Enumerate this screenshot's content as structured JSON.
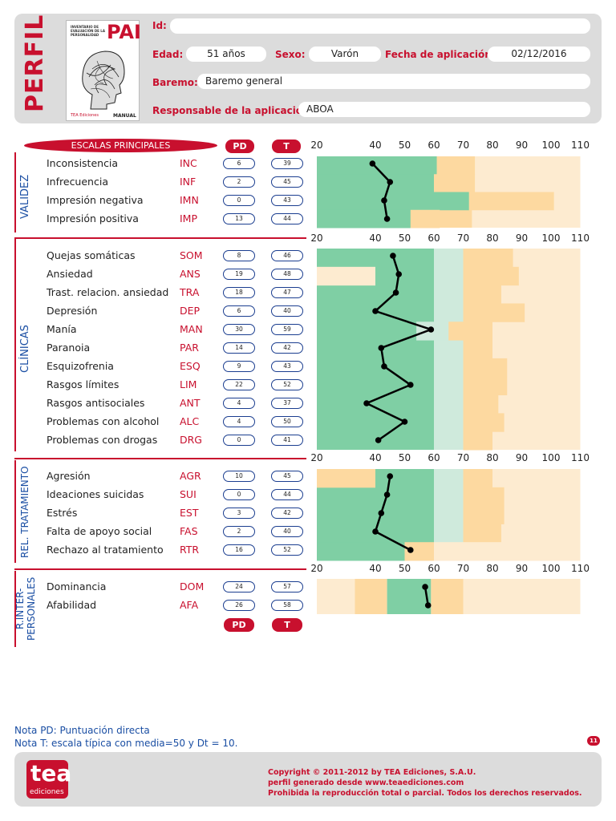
{
  "header": {
    "perfil": "PERFIL",
    "cover": {
      "title": "PAI",
      "subtitle": "INVENTARIO DE EVALUACIÓN DE LA PERSONALIDAD",
      "author": "Leslie C. Morey",
      "publisher": "TEA Ediciones",
      "manual": "MANUAL"
    },
    "id_label": "Id:",
    "id_value": "",
    "edad_label": "Edad:",
    "edad_value": "51 años",
    "sexo_label": "Sexo:",
    "sexo_value": "Varón",
    "fecha_label": "Fecha de aplicación:",
    "fecha_value": "02/12/2016",
    "baremo_label": "Baremo:",
    "baremo_value": "Baremo general",
    "responsable_label": "Responsable de la aplicación:",
    "responsable_value": "ABOA"
  },
  "table_header": {
    "escalas": "ESCALAS PRINCIPALES",
    "pd": "PD",
    "t": "T"
  },
  "axis_ticks": [
    "20",
    "40",
    "50",
    "60",
    "70",
    "80",
    "90",
    "100",
    "110"
  ],
  "sections": [
    {
      "label": "VALIDEZ",
      "scales": [
        {
          "name": "Inconsistencia",
          "abbr": "INC",
          "pd": "6",
          "t": "39"
        },
        {
          "name": "Infrecuencia",
          "abbr": "INF",
          "pd": "2",
          "t": "45"
        },
        {
          "name": "Impresión negativa",
          "abbr": "IMN",
          "pd": "0",
          "t": "43"
        },
        {
          "name": "Impresión positiva",
          "abbr": "IMP",
          "pd": "13",
          "t": "44"
        }
      ]
    },
    {
      "label": "CLÍNICAS",
      "scales": [
        {
          "name": "Quejas somáticas",
          "abbr": "SOM",
          "pd": "8",
          "t": "46"
        },
        {
          "name": "Ansiedad",
          "abbr": "ANS",
          "pd": "19",
          "t": "48"
        },
        {
          "name": "Trast. relacion. ansiedad",
          "abbr": "TRA",
          "pd": "18",
          "t": "47"
        },
        {
          "name": "Depresión",
          "abbr": "DEP",
          "pd": "6",
          "t": "40"
        },
        {
          "name": "Manía",
          "abbr": "MAN",
          "pd": "30",
          "t": "59"
        },
        {
          "name": "Paranoia",
          "abbr": "PAR",
          "pd": "14",
          "t": "42"
        },
        {
          "name": "Esquizofrenia",
          "abbr": "ESQ",
          "pd": "9",
          "t": "43"
        },
        {
          "name": "Rasgos límites",
          "abbr": "LIM",
          "pd": "22",
          "t": "52"
        },
        {
          "name": "Rasgos antisociales",
          "abbr": "ANT",
          "pd": "4",
          "t": "37"
        },
        {
          "name": "Problemas con alcohol",
          "abbr": "ALC",
          "pd": "4",
          "t": "50"
        },
        {
          "name": "Problemas con drogas",
          "abbr": "DRG",
          "pd": "0",
          "t": "41"
        }
      ]
    },
    {
      "label": "REL. TRATAMIENTO",
      "scales": [
        {
          "name": "Agresión",
          "abbr": "AGR",
          "pd": "10",
          "t": "45"
        },
        {
          "name": "Ideaciones suicidas",
          "abbr": "SUI",
          "pd": "0",
          "t": "44"
        },
        {
          "name": "Estrés",
          "abbr": "EST",
          "pd": "3",
          "t": "42"
        },
        {
          "name": "Falta de apoyo social",
          "abbr": "FAS",
          "pd": "2",
          "t": "40"
        },
        {
          "name": "Rechazo al tratamiento",
          "abbr": "RTR",
          "pd": "16",
          "t": "52"
        }
      ]
    },
    {
      "label": "R.INTER- PERSONALES",
      "label_line1": "R.INTER-",
      "label_line2": "PERSONALES",
      "scales": [
        {
          "name": "Dominancia",
          "abbr": "DOM",
          "pd": "24",
          "t": "57"
        },
        {
          "name": "Afabilidad",
          "abbr": "AFA",
          "pd": "26",
          "t": "58"
        }
      ]
    }
  ],
  "chart_data": {
    "type": "line",
    "x_axis_ticks": [
      20,
      40,
      50,
      60,
      70,
      80,
      90,
      100,
      110
    ],
    "xlim": [
      20,
      110
    ],
    "series": [
      {
        "name": "VALIDEZ",
        "categories": [
          "INC",
          "INF",
          "IMN",
          "IMP"
        ],
        "values": [
          39,
          45,
          43,
          44
        ]
      },
      {
        "name": "CLÍNICAS",
        "categories": [
          "SOM",
          "ANS",
          "TRA",
          "DEP",
          "MAN",
          "PAR",
          "ESQ",
          "LIM",
          "ANT",
          "ALC",
          "DRG"
        ],
        "values": [
          46,
          48,
          47,
          40,
          59,
          42,
          43,
          52,
          37,
          50,
          41
        ]
      },
      {
        "name": "REL. TRATAMIENTO",
        "categories": [
          "AGR",
          "SUI",
          "EST",
          "FAS",
          "RTR"
        ],
        "values": [
          45,
          44,
          42,
          40,
          52
        ]
      },
      {
        "name": "R.INTER-PERSONALES",
        "categories": [
          "DOM",
          "AFA"
        ],
        "values": [
          57,
          58
        ]
      }
    ]
  },
  "footer": {
    "nota_pd": "Nota PD: Puntuación directa",
    "nota_t": "Nota T:  escala típica con media=50 y Dt = 10.",
    "page": "11",
    "logo_word": "tea",
    "logo_sub": "ediciones",
    "copyright": "Copyright © 2011-2012 by TEA Ediciones, S.A.U.",
    "generated": "perfil generado desde www.teaediciones.com",
    "rights": "Prohibida la reproducción total o parcial. Todos los derechos reservados."
  },
  "colors": {
    "red": "#c8102e",
    "blue": "#1a4ea3",
    "green": "#7fcfa4",
    "light_green": "#cfeadc",
    "orange": "#fdd9a0",
    "light_orange": "#fdebd0"
  }
}
